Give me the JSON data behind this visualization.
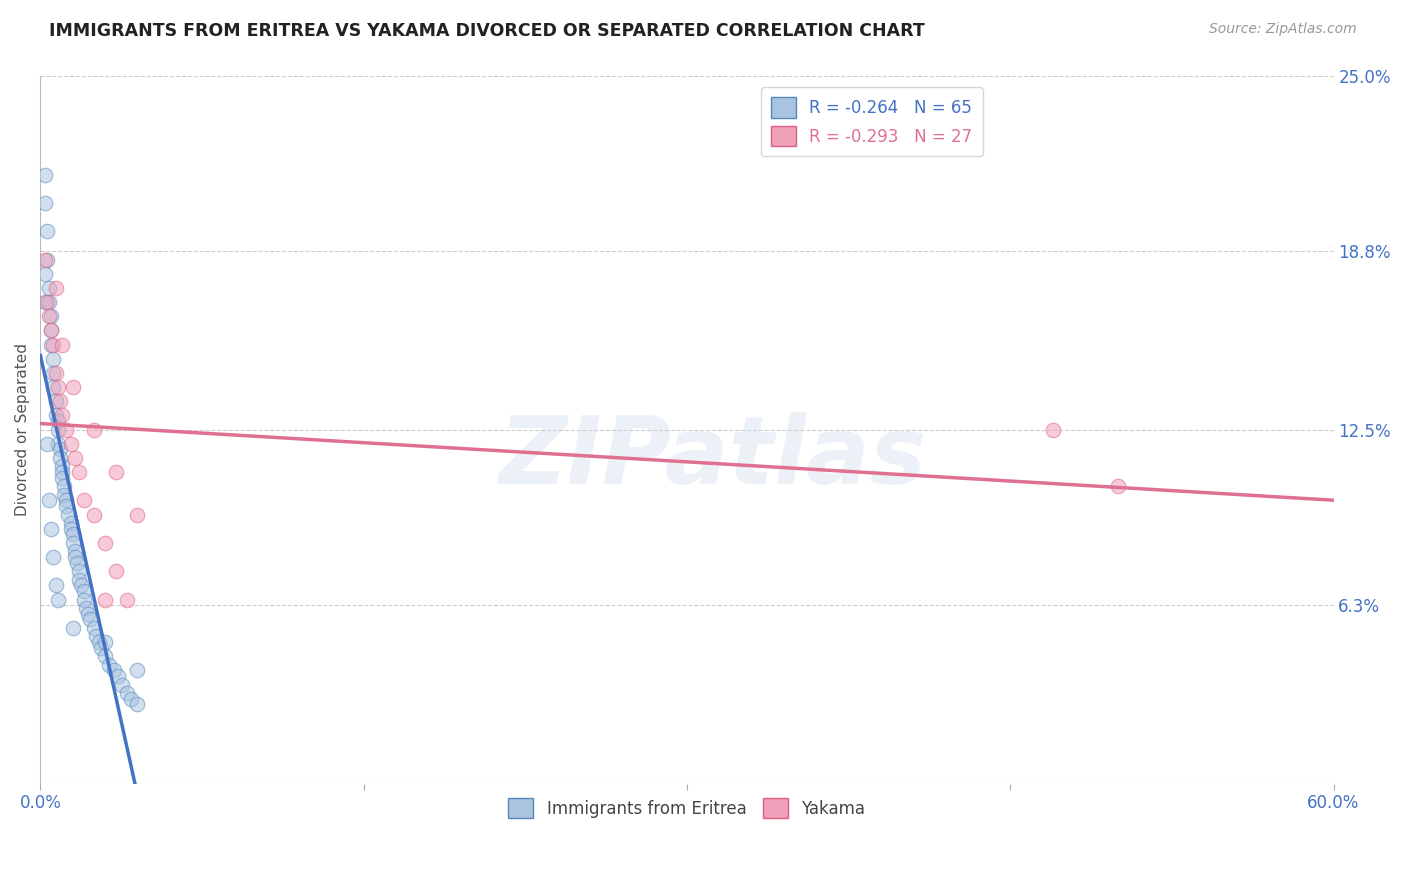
{
  "title": "IMMIGRANTS FROM ERITREA VS YAKAMA DIVORCED OR SEPARATED CORRELATION CHART",
  "source": "Source: ZipAtlas.com",
  "ylabel": "Divorced or Separated",
  "watermark": "ZIPatlas",
  "legend_labels": [
    "Immigrants from Eritrea",
    "Yakama"
  ],
  "r_blue": -0.264,
  "n_blue": 65,
  "r_pink": -0.293,
  "n_pink": 27,
  "xlim": [
    0.0,
    0.6
  ],
  "ylim": [
    0.0,
    0.25
  ],
  "yticks": [
    0.0,
    0.063,
    0.125,
    0.188,
    0.25
  ],
  "ytick_labels": [
    "",
    "6.3%",
    "12.5%",
    "18.8%",
    "25.0%"
  ],
  "xticks": [
    0.0,
    0.15,
    0.3,
    0.45,
    0.6
  ],
  "xtick_labels": [
    "0.0%",
    "",
    "",
    "",
    "60.0%"
  ],
  "background_color": "#ffffff",
  "grid_color": "#c8c8c8",
  "blue_color": "#aac4e0",
  "pink_color": "#f0a0b8",
  "blue_edge_color": "#5588bb",
  "pink_edge_color": "#e06080",
  "blue_line_color": "#4472c4",
  "pink_line_color": "#e07090",
  "axis_label_color": "#4472c4",
  "blue_points_x": [
    0.002,
    0.002,
    0.003,
    0.003,
    0.004,
    0.004,
    0.005,
    0.005,
    0.005,
    0.006,
    0.006,
    0.006,
    0.007,
    0.007,
    0.008,
    0.008,
    0.008,
    0.009,
    0.009,
    0.01,
    0.01,
    0.01,
    0.011,
    0.011,
    0.012,
    0.012,
    0.013,
    0.014,
    0.014,
    0.015,
    0.015,
    0.016,
    0.016,
    0.017,
    0.018,
    0.018,
    0.019,
    0.02,
    0.02,
    0.021,
    0.022,
    0.023,
    0.025,
    0.026,
    0.027,
    0.028,
    0.03,
    0.032,
    0.034,
    0.036,
    0.038,
    0.04,
    0.042,
    0.045,
    0.002,
    0.002,
    0.003,
    0.004,
    0.005,
    0.006,
    0.007,
    0.008,
    0.015,
    0.03,
    0.045
  ],
  "blue_points_y": [
    0.215,
    0.205,
    0.195,
    0.185,
    0.175,
    0.17,
    0.165,
    0.16,
    0.155,
    0.15,
    0.145,
    0.14,
    0.135,
    0.13,
    0.128,
    0.125,
    0.12,
    0.118,
    0.115,
    0.112,
    0.11,
    0.108,
    0.105,
    0.102,
    0.1,
    0.098,
    0.095,
    0.092,
    0.09,
    0.088,
    0.085,
    0.082,
    0.08,
    0.078,
    0.075,
    0.072,
    0.07,
    0.068,
    0.065,
    0.062,
    0.06,
    0.058,
    0.055,
    0.052,
    0.05,
    0.048,
    0.045,
    0.042,
    0.04,
    0.038,
    0.035,
    0.032,
    0.03,
    0.028,
    0.18,
    0.17,
    0.12,
    0.1,
    0.09,
    0.08,
    0.07,
    0.065,
    0.055,
    0.05,
    0.04
  ],
  "pink_points_x": [
    0.002,
    0.003,
    0.004,
    0.005,
    0.006,
    0.007,
    0.008,
    0.009,
    0.01,
    0.012,
    0.014,
    0.016,
    0.018,
    0.02,
    0.025,
    0.03,
    0.035,
    0.04,
    0.007,
    0.01,
    0.015,
    0.025,
    0.035,
    0.045,
    0.47,
    0.5,
    0.03
  ],
  "pink_points_y": [
    0.185,
    0.17,
    0.165,
    0.16,
    0.155,
    0.145,
    0.14,
    0.135,
    0.13,
    0.125,
    0.12,
    0.115,
    0.11,
    0.1,
    0.095,
    0.085,
    0.075,
    0.065,
    0.175,
    0.155,
    0.14,
    0.125,
    0.11,
    0.095,
    0.125,
    0.105,
    0.065
  ]
}
